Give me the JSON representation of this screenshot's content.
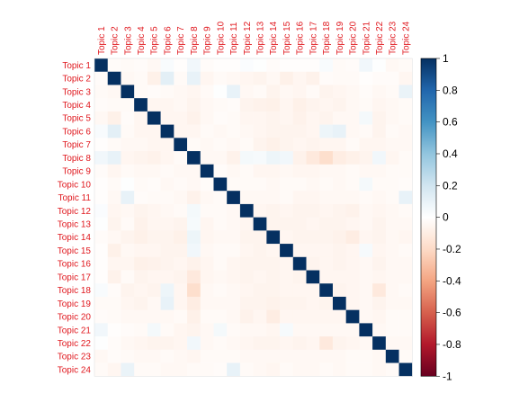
{
  "chart_data": {
    "type": "heatmap",
    "title": "",
    "labels": [
      "Topic 1",
      "Topic 2",
      "Topic 3",
      "Topic 4",
      "Topic 5",
      "Topic 6",
      "Topic 7",
      "Topic 8",
      "Topic 9",
      "Topic 10",
      "Topic 11",
      "Topic 12",
      "Topic 13",
      "Topic 14",
      "Topic 15",
      "Topic 16",
      "Topic 17",
      "Topic 18",
      "Topic 19",
      "Topic 20",
      "Topic 21",
      "Topic 22",
      "Topic 23",
      "Topic 24"
    ],
    "label_color": "#e0191f",
    "color_scale": {
      "min": -1,
      "max": 1,
      "stops": [
        "#67001f",
        "#b2182b",
        "#d6604d",
        "#f4a582",
        "#fddbc7",
        "#ffffff",
        "#d1e5f0",
        "#92c5de",
        "#4393c3",
        "#2166ac",
        "#053061"
      ]
    },
    "legend_ticks": [
      1,
      0.8,
      0.6,
      0.4,
      0.2,
      0,
      -0.2,
      -0.4,
      -0.6,
      -0.8,
      -1
    ],
    "matrix": [
      [
        1,
        -0.02,
        -0.03,
        -0.02,
        -0.04,
        0.03,
        -0.01,
        0.06,
        -0.02,
        -0.01,
        -0.01,
        0.02,
        0.01,
        -0.02,
        -0.01,
        -0.01,
        -0.01,
        0.03,
        -0.03,
        -0.02,
        0.06,
        0.01,
        -0.04,
        -0.03
      ],
      [
        -0.02,
        1,
        -0.04,
        -0.03,
        -0.08,
        0.12,
        -0.03,
        0.1,
        -0.05,
        -0.03,
        -0.04,
        -0.05,
        -0.06,
        -0.04,
        -0.08,
        -0.05,
        -0.07,
        -0.02,
        -0.03,
        -0.03,
        -0.01,
        -0.02,
        -0.02,
        -0.05
      ],
      [
        -0.03,
        -0.04,
        1,
        -0.03,
        -0.02,
        -0.03,
        -0.04,
        -0.05,
        -0.03,
        0.01,
        0.1,
        -0.04,
        -0.03,
        -0.06,
        -0.04,
        -0.05,
        -0.03,
        -0.06,
        -0.05,
        -0.04,
        -0.02,
        -0.04,
        -0.03,
        0.09
      ],
      [
        -0.02,
        -0.03,
        -0.03,
        1,
        -0.05,
        -0.05,
        -0.04,
        -0.06,
        -0.04,
        -0.03,
        -0.02,
        -0.06,
        -0.07,
        -0.08,
        -0.05,
        -0.08,
        -0.06,
        -0.05,
        -0.06,
        -0.04,
        -0.03,
        -0.05,
        -0.04,
        -0.03
      ],
      [
        -0.04,
        -0.08,
        -0.02,
        -0.05,
        1,
        -0.05,
        -0.05,
        -0.07,
        -0.04,
        -0.02,
        -0.03,
        -0.05,
        -0.05,
        -0.06,
        -0.05,
        -0.07,
        -0.05,
        -0.06,
        -0.04,
        -0.04,
        0.05,
        -0.06,
        -0.04,
        -0.03
      ],
      [
        0.03,
        0.12,
        -0.03,
        -0.05,
        -0.05,
        1,
        -0.05,
        -0.05,
        -0.03,
        -0.04,
        -0.03,
        -0.04,
        -0.05,
        -0.06,
        -0.06,
        -0.06,
        -0.05,
        0.08,
        0.1,
        -0.04,
        -0.03,
        -0.06,
        -0.03,
        -0.04
      ],
      [
        -0.01,
        -0.03,
        -0.04,
        -0.04,
        -0.05,
        -0.05,
        1,
        -0.03,
        -0.04,
        -0.03,
        -0.04,
        -0.03,
        -0.06,
        -0.08,
        -0.06,
        -0.05,
        -0.06,
        -0.05,
        -0.05,
        -0.03,
        -0.05,
        -0.05,
        -0.04,
        -0.04
      ],
      [
        0.06,
        0.1,
        -0.05,
        -0.06,
        -0.07,
        -0.05,
        -0.03,
        1,
        -0.04,
        -0.04,
        -0.07,
        0.05,
        0.04,
        0.08,
        0.06,
        -0.07,
        -0.12,
        -0.18,
        -0.1,
        -0.08,
        -0.06,
        0.06,
        -0.05,
        -0.03
      ],
      [
        -0.02,
        -0.05,
        -0.03,
        -0.04,
        -0.04,
        -0.03,
        -0.04,
        -0.04,
        1,
        -0.02,
        -0.04,
        -0.03,
        -0.05,
        -0.05,
        -0.04,
        -0.05,
        -0.05,
        -0.04,
        -0.04,
        -0.03,
        -0.04,
        -0.04,
        -0.03,
        -0.03
      ],
      [
        -0.01,
        -0.03,
        0.01,
        -0.03,
        -0.02,
        -0.04,
        -0.03,
        -0.04,
        -0.02,
        1,
        -0.03,
        -0.03,
        -0.03,
        -0.04,
        -0.03,
        -0.03,
        -0.04,
        -0.03,
        -0.04,
        -0.03,
        0.05,
        -0.03,
        -0.03,
        -0.02
      ],
      [
        -0.01,
        -0.04,
        0.1,
        -0.02,
        -0.03,
        -0.03,
        -0.04,
        -0.07,
        -0.04,
        -0.03,
        1,
        -0.04,
        -0.04,
        -0.04,
        -0.03,
        -0.05,
        -0.05,
        -0.04,
        -0.04,
        -0.04,
        -0.03,
        -0.04,
        -0.03,
        0.1
      ],
      [
        0.02,
        -0.05,
        -0.04,
        -0.06,
        -0.05,
        -0.04,
        -0.03,
        0.05,
        -0.03,
        -0.03,
        -0.04,
        1,
        -0.05,
        -0.06,
        -0.05,
        -0.06,
        -0.06,
        -0.05,
        -0.06,
        -0.07,
        -0.04,
        -0.05,
        -0.04,
        -0.03
      ],
      [
        0.01,
        -0.06,
        -0.03,
        -0.07,
        -0.05,
        -0.05,
        -0.06,
        0.04,
        -0.05,
        -0.03,
        -0.04,
        -0.05,
        1,
        -0.06,
        -0.06,
        -0.06,
        -0.05,
        -0.06,
        -0.06,
        -0.05,
        -0.04,
        -0.06,
        -0.04,
        -0.04
      ],
      [
        -0.02,
        -0.04,
        -0.06,
        -0.08,
        -0.06,
        -0.06,
        -0.08,
        0.08,
        -0.05,
        -0.04,
        -0.04,
        -0.06,
        -0.06,
        1,
        -0.05,
        -0.06,
        -0.06,
        -0.06,
        -0.07,
        -0.1,
        -0.05,
        -0.06,
        -0.04,
        -0.05
      ],
      [
        -0.01,
        -0.08,
        -0.04,
        -0.05,
        -0.05,
        -0.06,
        -0.06,
        0.06,
        -0.04,
        -0.03,
        -0.03,
        -0.05,
        -0.06,
        -0.05,
        1,
        -0.05,
        -0.05,
        -0.05,
        -0.06,
        -0.05,
        0.04,
        -0.05,
        -0.04,
        -0.03
      ],
      [
        -0.01,
        -0.05,
        -0.05,
        -0.08,
        -0.07,
        -0.06,
        -0.05,
        -0.07,
        -0.05,
        -0.03,
        -0.05,
        -0.06,
        -0.06,
        -0.06,
        -0.05,
        1,
        -0.06,
        -0.05,
        -0.06,
        -0.05,
        -0.04,
        -0.06,
        -0.04,
        -0.04
      ],
      [
        -0.01,
        -0.07,
        -0.03,
        -0.06,
        -0.05,
        -0.05,
        -0.06,
        -0.12,
        -0.05,
        -0.04,
        -0.05,
        -0.06,
        -0.05,
        -0.06,
        -0.05,
        -0.06,
        1,
        -0.05,
        -0.05,
        -0.05,
        -0.04,
        -0.05,
        -0.04,
        -0.04
      ],
      [
        0.03,
        -0.02,
        -0.06,
        -0.05,
        -0.06,
        0.08,
        -0.05,
        -0.18,
        -0.04,
        -0.03,
        -0.04,
        -0.05,
        -0.06,
        -0.06,
        -0.05,
        -0.05,
        -0.05,
        1,
        -0.06,
        -0.05,
        -0.04,
        -0.12,
        -0.04,
        -0.03
      ],
      [
        -0.03,
        -0.03,
        -0.05,
        -0.06,
        -0.04,
        0.1,
        -0.05,
        -0.1,
        -0.04,
        -0.04,
        -0.04,
        -0.06,
        -0.06,
        -0.07,
        -0.06,
        -0.06,
        -0.05,
        -0.06,
        1,
        -0.05,
        -0.04,
        -0.06,
        -0.04,
        -0.04
      ],
      [
        -0.02,
        -0.03,
        -0.04,
        -0.04,
        -0.04,
        -0.04,
        -0.03,
        -0.08,
        -0.03,
        -0.03,
        -0.04,
        -0.07,
        -0.05,
        -0.1,
        -0.05,
        -0.05,
        -0.05,
        -0.05,
        -0.05,
        1,
        -0.04,
        -0.05,
        -0.03,
        -0.03
      ],
      [
        0.06,
        -0.01,
        -0.02,
        -0.03,
        0.05,
        -0.03,
        -0.05,
        -0.06,
        -0.04,
        0.05,
        -0.03,
        -0.04,
        -0.04,
        -0.05,
        0.04,
        -0.04,
        -0.04,
        -0.04,
        -0.04,
        -0.04,
        1,
        -0.04,
        -0.03,
        -0.03
      ],
      [
        0.01,
        -0.02,
        -0.04,
        -0.05,
        -0.06,
        -0.06,
        -0.05,
        0.06,
        -0.04,
        -0.03,
        -0.04,
        -0.05,
        -0.06,
        -0.06,
        -0.05,
        -0.06,
        -0.05,
        -0.12,
        -0.06,
        -0.05,
        -0.04,
        1,
        -0.04,
        -0.04
      ],
      [
        -0.04,
        -0.02,
        -0.03,
        -0.04,
        -0.04,
        -0.03,
        -0.04,
        -0.05,
        -0.03,
        -0.03,
        -0.03,
        -0.04,
        -0.04,
        -0.04,
        -0.04,
        -0.04,
        -0.04,
        -0.04,
        -0.04,
        -0.03,
        -0.03,
        -0.04,
        1,
        -0.03
      ],
      [
        -0.03,
        -0.05,
        0.09,
        -0.03,
        -0.03,
        -0.04,
        -0.04,
        -0.03,
        -0.03,
        -0.02,
        0.1,
        -0.03,
        -0.04,
        -0.05,
        -0.03,
        -0.04,
        -0.04,
        -0.03,
        -0.04,
        -0.03,
        -0.03,
        -0.04,
        -0.03,
        1
      ]
    ]
  }
}
